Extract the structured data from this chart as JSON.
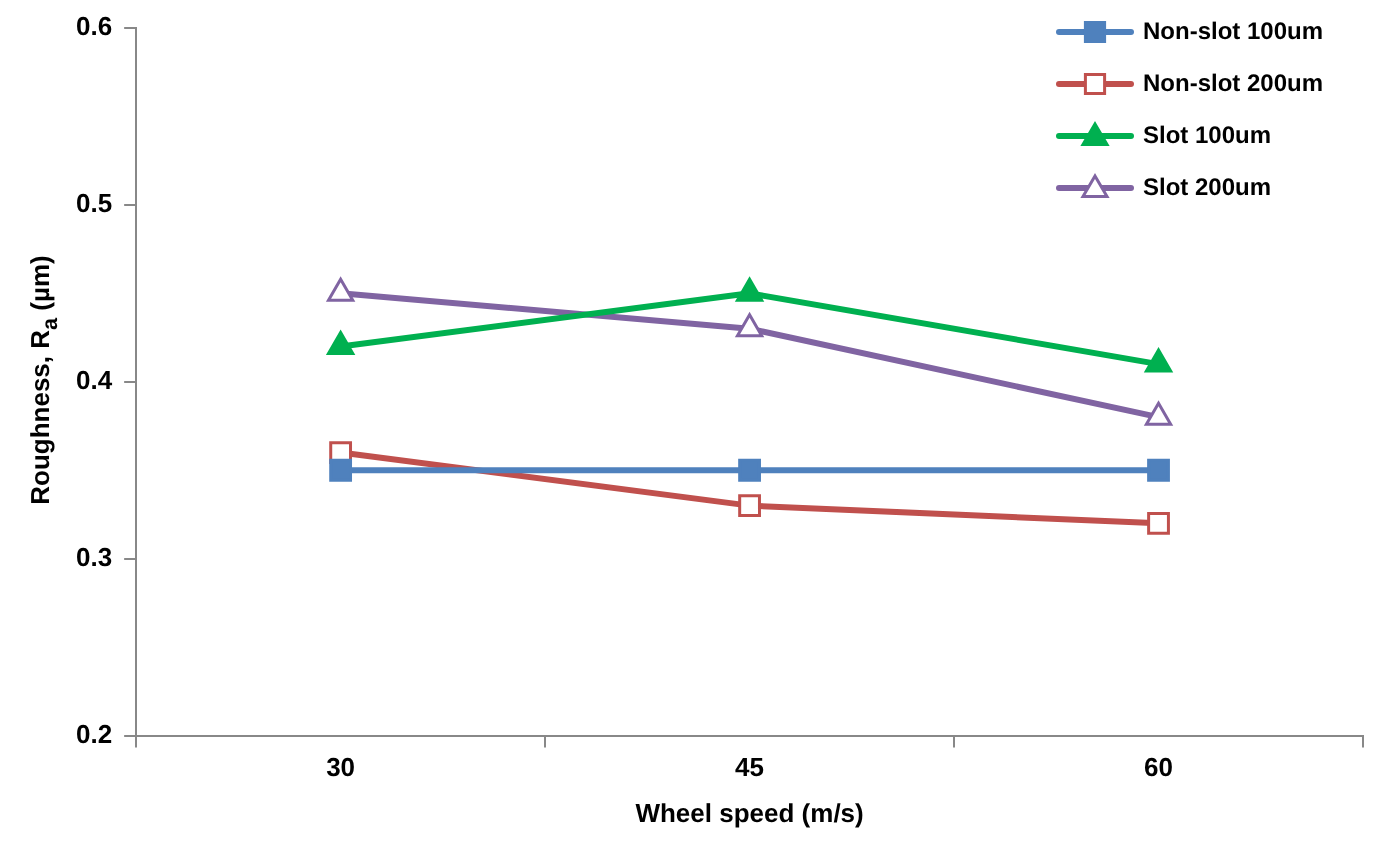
{
  "chart_data": {
    "type": "line",
    "xlabel": "Wheel speed (m/s)",
    "ylabel": "Roughness, R$_{a}$ (µm)",
    "categories": [
      "30",
      "45",
      "60"
    ],
    "series": [
      {
        "name": "Non-slot 100um",
        "color": "#4f81bd",
        "values": [
          0.35,
          0.35,
          0.35
        ],
        "marker": "square"
      },
      {
        "name": "Non-slot 200um",
        "color": "#c0504d",
        "values": [
          0.36,
          0.33,
          0.32
        ],
        "marker": "square"
      },
      {
        "name": "Slot 100um",
        "color": "#00b050",
        "values": [
          0.42,
          0.45,
          0.41
        ],
        "marker": "triangle"
      },
      {
        "name": "Slot 200um",
        "color": "#8064a2",
        "values": [
          0.45,
          0.43,
          0.38
        ],
        "marker": "triangle"
      }
    ],
    "ylim": [
      0.2,
      0.6
    ],
    "yticks": [
      0.2,
      0.3,
      0.4,
      0.5,
      0.6
    ],
    "grid": false,
    "legend": "top right"
  }
}
